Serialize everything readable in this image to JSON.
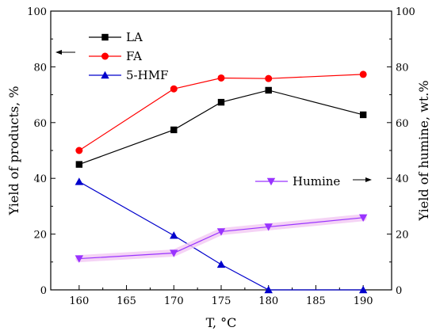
{
  "chart_data": {
    "type": "line",
    "x": [
      160,
      170,
      175,
      180,
      190
    ],
    "xlabel": "T, °C",
    "ylabel_left": "Yield of products, %",
    "ylabel_right": "Yield of humine, wt.%",
    "xlim": [
      157,
      193
    ],
    "ylim": [
      0,
      100
    ],
    "ylim_right": [
      0,
      100
    ],
    "xticks": [
      "160",
      "165",
      "170",
      "175",
      "180",
      "185",
      "190"
    ],
    "yticks_left": [
      "0",
      "20",
      "40",
      "60",
      "80",
      "100"
    ],
    "yticks_right": [
      "0",
      "20",
      "40",
      "60",
      "80",
      "100"
    ],
    "grid": false,
    "legend_position": "top-left",
    "series": [
      {
        "name": "LA",
        "axis": "left",
        "color": "#000000",
        "marker": "square",
        "values": [
          45.0,
          57.4,
          67.3,
          71.6,
          62.8
        ]
      },
      {
        "name": "FA",
        "axis": "left",
        "color": "#ff0000",
        "marker": "circle",
        "values": [
          50.0,
          72.1,
          76.0,
          75.8,
          77.3
        ]
      },
      {
        "name": "5-HMF",
        "axis": "left",
        "color": "#0000cc",
        "marker": "triangle-up",
        "values": [
          38.8,
          19.5,
          9.1,
          0.0,
          0.0
        ]
      },
      {
        "name": "Humine",
        "axis": "right",
        "color": "#9933ff",
        "marker": "triangle-down",
        "values": [
          11.2,
          13.2,
          20.9,
          22.6,
          25.9
        ]
      }
    ]
  }
}
